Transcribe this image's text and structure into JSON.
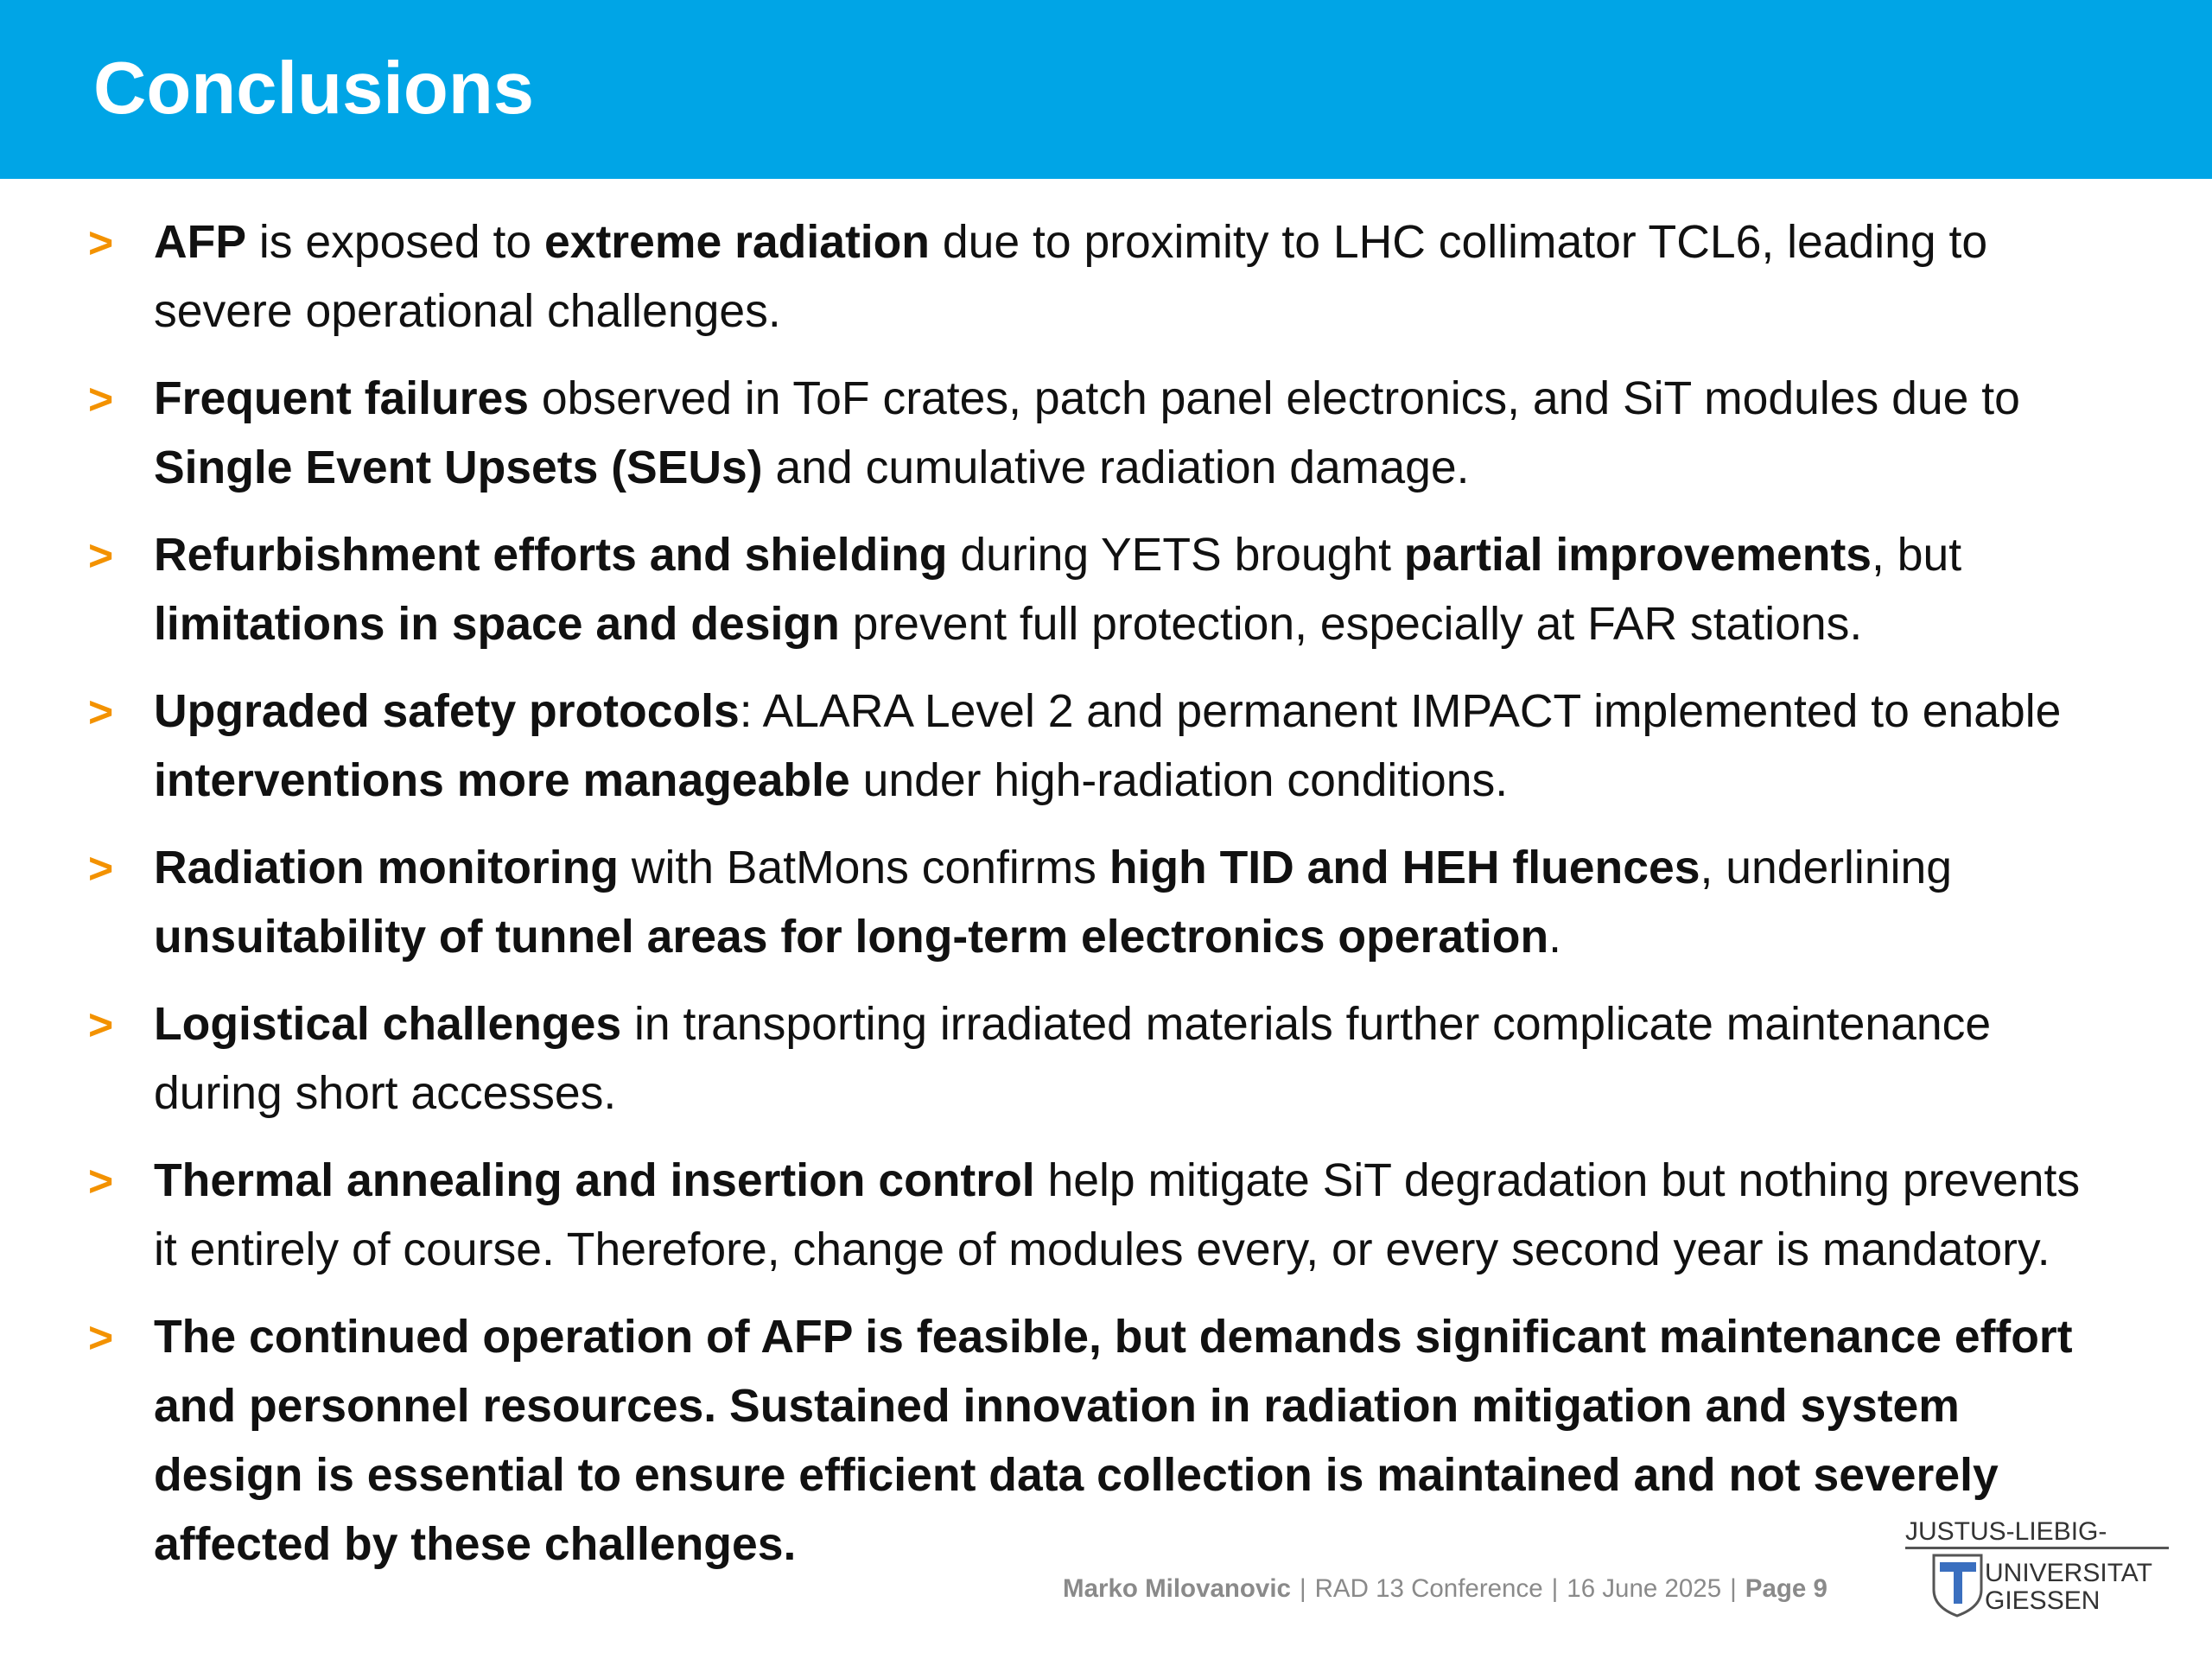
{
  "header": {
    "title": "Conclusions"
  },
  "colors": {
    "header_bg": "#00a5e6",
    "bullet_marker": "#f39200",
    "logo_blue": "#3a6fbf"
  },
  "bullet_marker": ">",
  "bullets": [
    {
      "segments": [
        {
          "text": "AFP",
          "bold": true
        },
        {
          "text": " is exposed to ",
          "bold": false
        },
        {
          "text": "extreme radiation",
          "bold": true
        },
        {
          "text": " due to proximity to LHC collimator TCL6, leading to severe operational challenges.",
          "bold": false
        }
      ]
    },
    {
      "segments": [
        {
          "text": "Frequent failures",
          "bold": true
        },
        {
          "text": " observed in ToF crates, patch panel electronics, and SiT modules due to ",
          "bold": false
        },
        {
          "text": "Single Event Upsets (SEUs)",
          "bold": true
        },
        {
          "text": " and cumulative radiation damage.",
          "bold": false
        }
      ]
    },
    {
      "segments": [
        {
          "text": "Refurbishment efforts and shielding",
          "bold": true
        },
        {
          "text": " during YETS brought ",
          "bold": false
        },
        {
          "text": "partial improvements",
          "bold": true
        },
        {
          "text": ", but ",
          "bold": false
        },
        {
          "text": "limitations in space and design",
          "bold": true
        },
        {
          "text": " prevent full protection, especially at FAR stations.",
          "bold": false
        }
      ]
    },
    {
      "segments": [
        {
          "text": "Upgraded safety protocols",
          "bold": true
        },
        {
          "text": ": ALARA Level 2 and permanent IMPACT implemented to enable ",
          "bold": false
        },
        {
          "text": "interventions more manageable",
          "bold": true
        },
        {
          "text": " under high-radiation conditions.",
          "bold": false
        }
      ]
    },
    {
      "segments": [
        {
          "text": "Radiation monitoring",
          "bold": true
        },
        {
          "text": " with BatMons confirms ",
          "bold": false
        },
        {
          "text": "high TID and HEH fluences",
          "bold": true
        },
        {
          "text": ", underlining ",
          "bold": false
        },
        {
          "text": "unsuitability of tunnel areas for long-term electronics operation",
          "bold": true
        },
        {
          "text": ".",
          "bold": false
        }
      ]
    },
    {
      "segments": [
        {
          "text": "Logistical challenges",
          "bold": true
        },
        {
          "text": " in transporting irradiated materials further complicate maintenance during short accesses.",
          "bold": false
        }
      ]
    },
    {
      "segments": [
        {
          "text": "Thermal annealing and insertion control",
          "bold": true
        },
        {
          "text": " help mitigate SiT degradation but nothing prevents it entirely of course. Therefore, change of modules every, or every second year is mandatory.",
          "bold": false
        }
      ]
    },
    {
      "segments": [
        {
          "text": "The continued operation of AFP is feasible, but demands significant maintenance effort and personnel resources. Sustained innovation in radiation mitigation and system design is essential to ensure efficient data collection is maintained and not severely affected by these challenges.",
          "bold": true
        }
      ]
    }
  ],
  "footer": {
    "author": "Marko Milovanovic",
    "conference": "RAD 13 Conference",
    "date": "16 June 2025",
    "page": "Page 9",
    "separator": "|"
  },
  "logo": {
    "line1": "JUSTUS-LIEBIG-",
    "line2": "UNIVERSITAT",
    "line3": "GIESSEN"
  }
}
